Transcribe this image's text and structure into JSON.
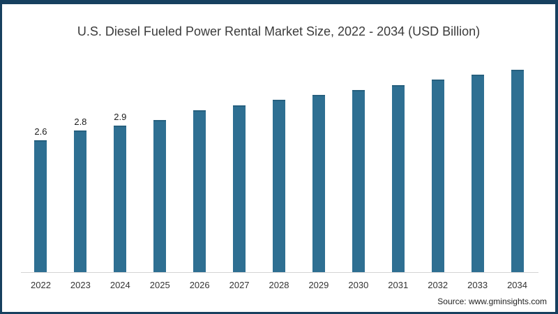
{
  "frame": {
    "border_color": "#17405f",
    "background": "#ffffff"
  },
  "chart_data": {
    "type": "bar",
    "title": "U.S. Diesel Fueled Power Rental Market Size, 2022 - 2034 (USD Billion)",
    "unit": "USD Billion",
    "categories": [
      "2022",
      "2023",
      "2024",
      "2025",
      "2026",
      "2027",
      "2028",
      "2029",
      "2030",
      "2031",
      "2032",
      "2033",
      "2034"
    ],
    "values": [
      2.6,
      2.8,
      2.9,
      3.0,
      3.2,
      3.3,
      3.4,
      3.5,
      3.6,
      3.7,
      3.8,
      3.9,
      4.0
    ],
    "data_labels": [
      "2.6",
      "2.8",
      "2.9",
      "",
      "",
      "",
      "",
      "",
      "",
      "",
      "",
      "",
      ""
    ],
    "bar_color": "#2e6f92",
    "bar_edge_color": "#26607f",
    "axis_line_color": "#d4d4d4",
    "xlabel": "",
    "ylabel": "",
    "ylim": [
      0,
      4.4
    ],
    "grid": false,
    "legend": false
  },
  "source": {
    "label": "Source: www.gminsights.com"
  }
}
